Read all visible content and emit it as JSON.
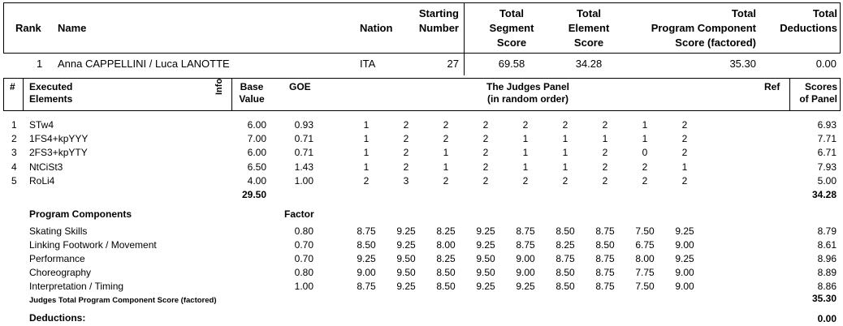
{
  "header": {
    "rank": "Rank",
    "name": "Name",
    "nation": "Nation",
    "starting_number": [
      "Starting",
      "Number"
    ],
    "total_segment_score": [
      "Total",
      "Segment",
      "Score"
    ],
    "total_element_score": [
      "Total",
      "Element",
      "Score"
    ],
    "total_pcs": [
      "Total",
      "Program  Component",
      "Score (factored)"
    ],
    "total_deductions": [
      "Total",
      "Deductions"
    ]
  },
  "skater": {
    "rank": "1",
    "name": "Anna CAPPELLINI / Luca LANOTTE",
    "nation": "ITA",
    "starting_number": "27",
    "total_segment_score": "69.58",
    "total_element_score": "34.28",
    "total_pcs": "35.30",
    "total_deductions": "0.00"
  },
  "elements_header": {
    "num": "#",
    "executed": [
      "Executed",
      "Elements"
    ],
    "info": "Info",
    "base_value": [
      "Base",
      "Value"
    ],
    "goe": "GOE",
    "judges_panel": [
      "The Judges Panel",
      "(in random order)"
    ],
    "ref": "Ref",
    "scores": [
      "Scores",
      "of Panel"
    ]
  },
  "elements": [
    {
      "num": "1",
      "name": "STw4",
      "base": "6.00",
      "goe": "0.93",
      "judges": [
        "1",
        "2",
        "2",
        "2",
        "2",
        "2",
        "2",
        "1",
        "2"
      ],
      "score": "6.93"
    },
    {
      "num": "2",
      "name": "1FS4+kpYYY",
      "base": "7.00",
      "goe": "0.71",
      "judges": [
        "1",
        "2",
        "2",
        "2",
        "1",
        "1",
        "1",
        "1",
        "2"
      ],
      "score": "7.71"
    },
    {
      "num": "3",
      "name": "2FS3+kpYTY",
      "base": "6.00",
      "goe": "0.71",
      "judges": [
        "1",
        "2",
        "1",
        "2",
        "1",
        "1",
        "2",
        "0",
        "2"
      ],
      "score": "6.71"
    },
    {
      "num": "4",
      "name": "NtCiSt3",
      "base": "6.50",
      "goe": "1.43",
      "judges": [
        "1",
        "2",
        "1",
        "2",
        "1",
        "1",
        "2",
        "2",
        "1"
      ],
      "score": "7.93"
    },
    {
      "num": "5",
      "name": "RoLi4",
      "base": "4.00",
      "goe": "1.00",
      "judges": [
        "2",
        "3",
        "2",
        "2",
        "2",
        "2",
        "2",
        "2",
        "2"
      ],
      "score": "5.00"
    }
  ],
  "elements_total_base": "29.50",
  "elements_total_score": "34.28",
  "pc_header": {
    "title": "Program Components",
    "factor": "Factor"
  },
  "components": [
    {
      "name": "Skating Skills",
      "factor": "0.80",
      "judges": [
        "8.75",
        "9.25",
        "8.25",
        "9.25",
        "8.75",
        "8.50",
        "8.75",
        "7.50",
        "9.25"
      ],
      "score": "8.79"
    },
    {
      "name": "Linking Footwork / Movement",
      "factor": "0.70",
      "judges": [
        "8.50",
        "9.25",
        "8.00",
        "9.25",
        "8.75",
        "8.25",
        "8.50",
        "6.75",
        "9.00"
      ],
      "score": "8.61"
    },
    {
      "name": "Performance",
      "factor": "0.70",
      "judges": [
        "9.25",
        "9.50",
        "8.25",
        "9.50",
        "9.00",
        "8.75",
        "8.75",
        "8.00",
        "9.25"
      ],
      "score": "8.96"
    },
    {
      "name": "Choreography",
      "factor": "0.80",
      "judges": [
        "9.00",
        "9.50",
        "8.50",
        "9.50",
        "9.00",
        "8.50",
        "8.75",
        "7.75",
        "9.00"
      ],
      "score": "8.89"
    },
    {
      "name": "Interpretation / Timing",
      "factor": "1.00",
      "judges": [
        "8.75",
        "9.25",
        "8.50",
        "9.25",
        "9.25",
        "8.50",
        "8.75",
        "7.50",
        "9.00"
      ],
      "score": "8.86"
    }
  ],
  "pcs_total_label": "Judges Total Program Component Score (factored)",
  "pcs_total": "35.30",
  "deductions_label": "Deductions:",
  "deductions_value": "0.00"
}
